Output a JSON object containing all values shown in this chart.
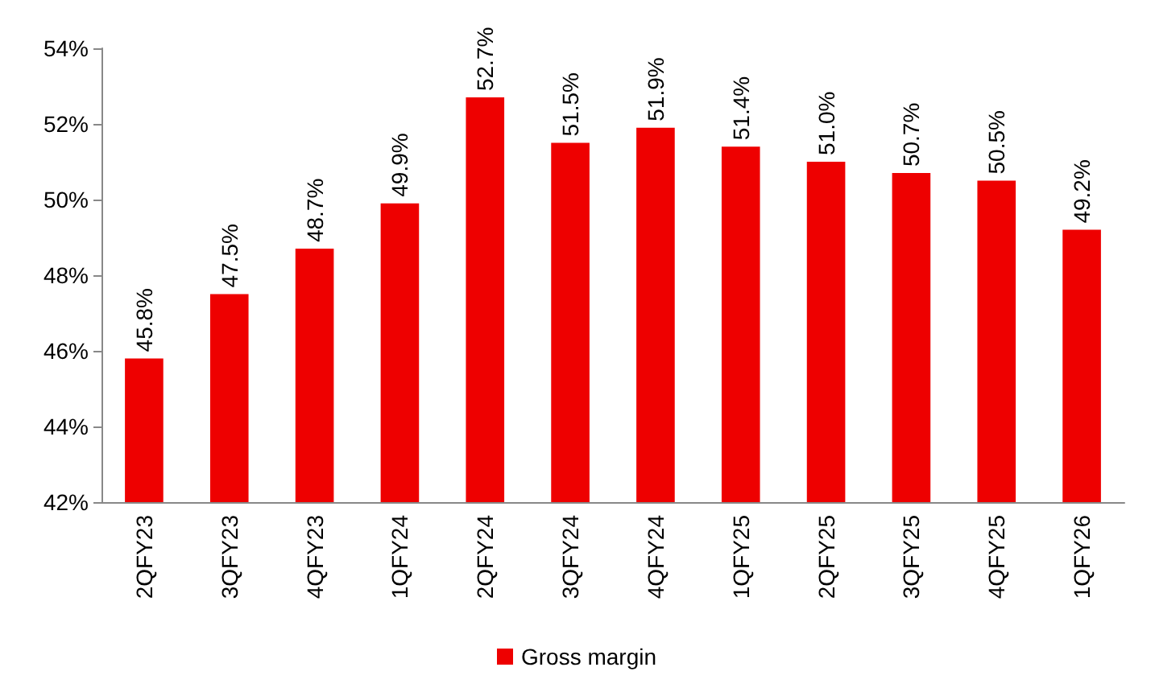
{
  "chart_data": {
    "type": "bar",
    "categories": [
      "2QFY23",
      "3QFY23",
      "4QFY23",
      "1QFY24",
      "2QFY24",
      "3QFY24",
      "4QFY24",
      "1QFY25",
      "2QFY25",
      "3QFY25",
      "4QFY25",
      "1QFY26"
    ],
    "series": [
      {
        "name": "Gross margin",
        "color": "#ee0000",
        "values": [
          45.8,
          47.5,
          48.7,
          49.9,
          52.7,
          51.5,
          51.9,
          51.4,
          51.0,
          50.7,
          50.5,
          49.2
        ],
        "value_labels": [
          "45.8%",
          "47.5%",
          "48.7%",
          "49.9%",
          "52.7%",
          "51.5%",
          "51.9%",
          "51.4%",
          "51.0%",
          "50.7%",
          "50.5%",
          "49.2%"
        ]
      }
    ],
    "ylim": [
      42,
      54
    ],
    "yticks": [
      {
        "value": 42,
        "label": "42%"
      },
      {
        "value": 44,
        "label": "44%"
      },
      {
        "value": 46,
        "label": "46%"
      },
      {
        "value": 48,
        "label": "48%"
      },
      {
        "value": 50,
        "label": "50%"
      },
      {
        "value": 52,
        "label": "52%"
      },
      {
        "value": 54,
        "label": "54%"
      }
    ],
    "grid": false,
    "legend": "bottom"
  }
}
